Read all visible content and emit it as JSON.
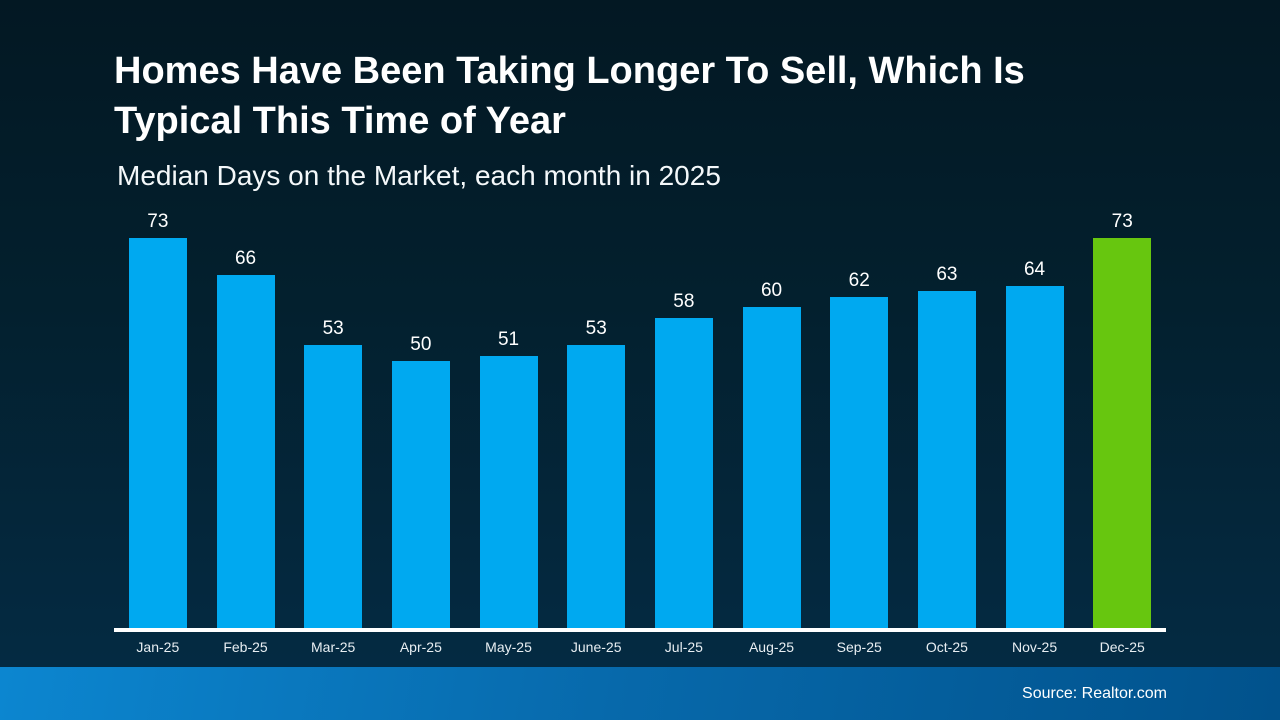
{
  "header": {
    "title_lines": [
      "Homes Have Been Taking Longer To Sell, Which Is",
      "Typical This Time of Year"
    ],
    "subtitle": "Median Days on the Market, each month in 2025"
  },
  "footer": {
    "source": "Source: Realtor.com"
  },
  "colors": {
    "bar_default": "#00a9f0",
    "bar_highlight": "#67c60f",
    "background_top": "#031823",
    "background_bottom": "#052c44",
    "footer_left": "#0c86d0",
    "footer_right": "#01528c",
    "axis_line": "#ffffff",
    "title_text": "#ffffff",
    "tick_text": "#e8eef2"
  },
  "chart_data": {
    "type": "bar",
    "title": "Homes Have Been Taking Longer To Sell, Which Is Typical This Time of Year",
    "subtitle": "Median Days on the Market, each month in 2025",
    "categories": [
      "Jan-25",
      "Feb-25",
      "Mar-25",
      "Apr-25",
      "May-25",
      "June-25",
      "Jul-25",
      "Aug-25",
      "Sep-25",
      "Oct-25",
      "Nov-25",
      "Dec-25"
    ],
    "values": [
      73,
      66,
      53,
      50,
      51,
      53,
      58,
      60,
      62,
      63,
      64,
      73
    ],
    "highlight_index": 11,
    "xlabel": "",
    "ylabel": "Median Days on the Market",
    "ylim": [
      0,
      73
    ],
    "grid": false,
    "legend": false,
    "value_labels": true,
    "source": "Source: Realtor.com"
  }
}
